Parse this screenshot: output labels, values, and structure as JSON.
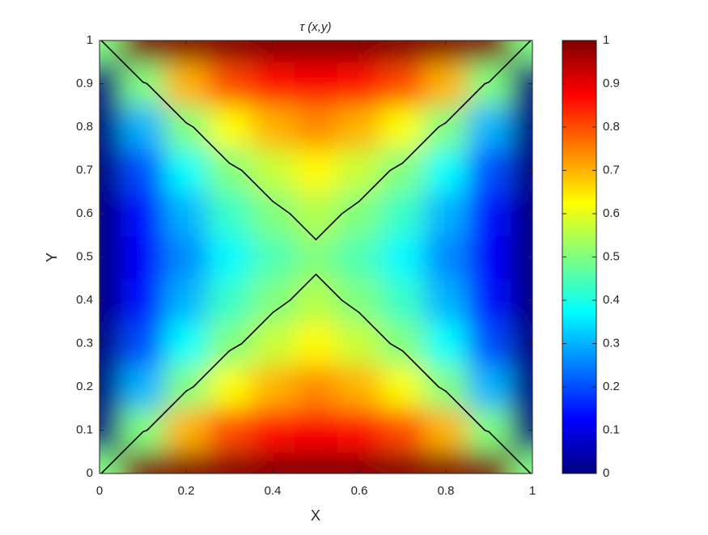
{
  "chart_data": {
    "type": "contourf",
    "title": "τ (x,y)",
    "x_label": "X",
    "y_label": "Y",
    "x": [
      0,
      0.1,
      0.2,
      0.3,
      0.4,
      0.5,
      0.6,
      0.7,
      0.8,
      0.9,
      1
    ],
    "y": [
      0,
      0.1,
      0.2,
      0.3,
      0.4,
      0.5,
      0.6,
      0.7,
      0.8,
      0.9,
      1
    ],
    "z": [
      [
        0.5,
        1,
        1,
        1,
        1,
        1,
        1,
        1,
        1,
        1,
        0.5
      ],
      [
        0,
        0.5,
        0.7,
        0.8,
        0.86,
        0.88,
        0.86,
        0.8,
        0.7,
        0.5,
        0
      ],
      [
        0,
        0.3,
        0.5,
        0.62,
        0.7,
        0.74,
        0.7,
        0.62,
        0.5,
        0.3,
        0
      ],
      [
        0,
        0.2,
        0.38,
        0.5,
        0.57,
        0.63,
        0.57,
        0.5,
        0.38,
        0.2,
        0
      ],
      [
        0,
        0.14,
        0.3,
        0.43,
        0.5,
        0.55,
        0.5,
        0.43,
        0.3,
        0.14,
        0
      ],
      [
        0,
        0.12,
        0.26,
        0.37,
        0.45,
        0.5,
        0.45,
        0.37,
        0.26,
        0.12,
        0
      ],
      [
        0,
        0.14,
        0.3,
        0.43,
        0.5,
        0.55,
        0.5,
        0.43,
        0.3,
        0.14,
        0
      ],
      [
        0,
        0.2,
        0.38,
        0.5,
        0.57,
        0.63,
        0.57,
        0.5,
        0.38,
        0.2,
        0
      ],
      [
        0,
        0.3,
        0.5,
        0.62,
        0.7,
        0.74,
        0.7,
        0.62,
        0.5,
        0.3,
        0
      ],
      [
        0,
        0.5,
        0.7,
        0.8,
        0.86,
        0.88,
        0.86,
        0.8,
        0.7,
        0.5,
        0
      ],
      [
        0.5,
        1,
        1,
        1,
        1,
        1,
        1,
        1,
        1,
        1,
        0.5
      ]
    ],
    "contour_level": 0.52,
    "contour_color": "#000000",
    "colormap": "jet",
    "xlim": [
      0,
      1
    ],
    "ylim": [
      0,
      1
    ],
    "clim": [
      0,
      1
    ],
    "xticks": [
      0,
      0.2,
      0.4,
      0.6,
      0.8,
      1
    ],
    "yticks": [
      0,
      0.1,
      0.2,
      0.3,
      0.4,
      0.5,
      0.6,
      0.7,
      0.8,
      0.9,
      1
    ],
    "cticks": [
      0,
      0.1,
      0.2,
      0.3,
      0.4,
      0.5,
      0.6,
      0.7,
      0.8,
      0.9,
      1
    ]
  }
}
